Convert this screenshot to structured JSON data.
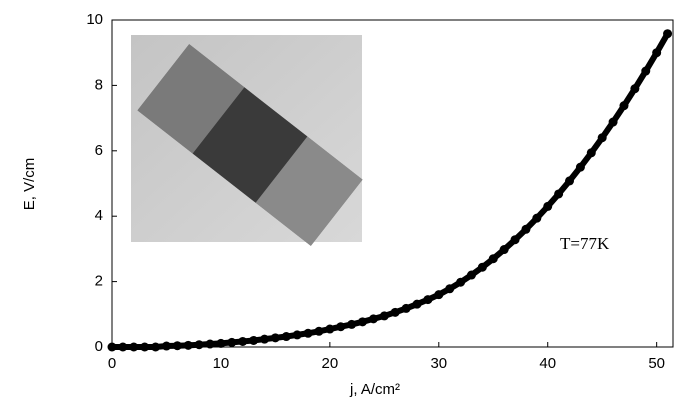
{
  "chart_data": {
    "type": "scatter",
    "x": [
      0,
      1,
      2,
      3,
      4,
      5,
      6,
      7,
      8,
      9,
      10,
      11,
      12,
      13,
      14,
      15,
      16,
      17,
      18,
      19,
      20,
      21,
      22,
      23,
      24,
      25,
      26,
      27,
      28,
      29,
      30,
      31,
      32,
      33,
      34,
      35,
      36,
      37,
      38,
      39,
      40,
      41,
      42,
      43,
      44,
      45,
      46,
      47,
      48,
      49,
      50,
      51
    ],
    "y": [
      0,
      0,
      0,
      0,
      0,
      0.03,
      0.04,
      0.05,
      0.07,
      0.09,
      0.11,
      0.14,
      0.17,
      0.2,
      0.24,
      0.28,
      0.32,
      0.37,
      0.42,
      0.48,
      0.55,
      0.62,
      0.69,
      0.77,
      0.86,
      0.95,
      1.06,
      1.18,
      1.31,
      1.45,
      1.6,
      1.78,
      1.98,
      2.2,
      2.44,
      2.7,
      2.98,
      3.28,
      3.6,
      3.94,
      4.3,
      4.68,
      5.08,
      5.5,
      5.94,
      6.4,
      6.88,
      7.38,
      7.9,
      8.44,
      9.0,
      9.58
    ],
    "color": "#000000",
    "xlim": [
      0,
      51.5
    ],
    "ylim": [
      0,
      10
    ],
    "xticks": [
      0,
      10,
      20,
      30,
      40,
      50
    ],
    "yticks": [
      0,
      2,
      4,
      6,
      8,
      10
    ],
    "xlabel": "j, A/cm²",
    "ylabel": "E, V/cm",
    "annotation": "T=77K"
  }
}
